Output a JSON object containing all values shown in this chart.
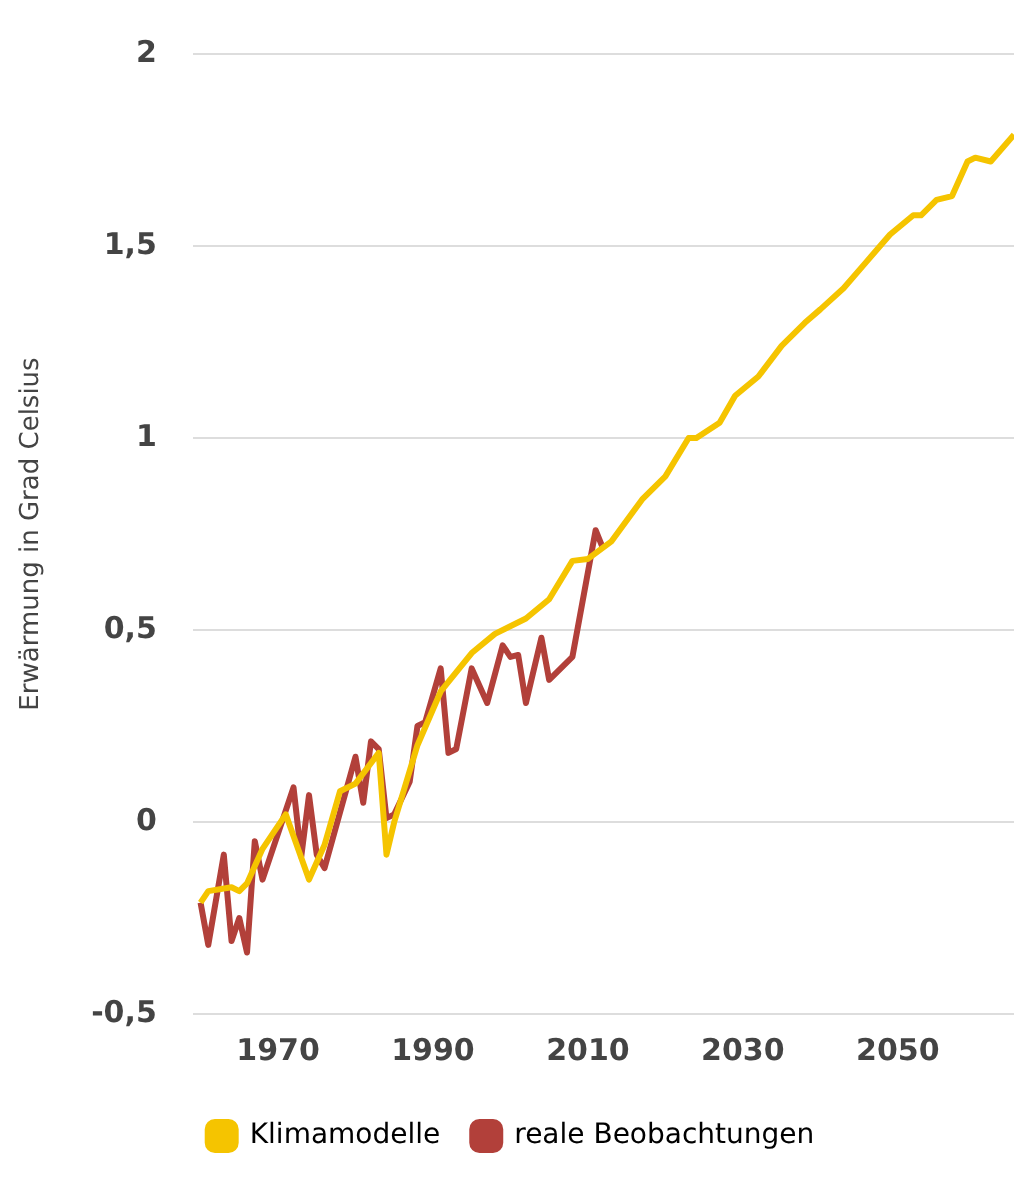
{
  "chart_data": {
    "type": "line",
    "ylabel": "Erwärmung in Grad Celsius",
    "xlim": [
      1959,
      2065
    ],
    "xticks": [
      1970,
      1990,
      2010,
      2030,
      2050
    ],
    "ylim": [
      -0.5,
      2
    ],
    "yticks": [
      {
        "value": -0.5,
        "label": "-0,5"
      },
      0,
      {
        "value": 0.5,
        "label": "0,5"
      },
      1,
      {
        "value": 1.5,
        "label": "1,5"
      },
      2
    ],
    "grid": "y",
    "legend": "bottom",
    "marker": "none",
    "line_style": "solid",
    "series": [
      {
        "name": "Klimamodelle",
        "color": "#f5c400",
        "x": [
          1960,
          1961,
          1964,
          1965,
          1966,
          1968,
          1971,
          1974,
          1976,
          1978,
          1980,
          1983,
          1984,
          1985,
          1988,
          1991,
          1995,
          1998,
          2002,
          2005,
          2008,
          2010,
          2013,
          2017,
          2020,
          2023,
          2024,
          2027,
          2029,
          2032,
          2035,
          2038,
          2040,
          2043,
          2046,
          2049,
          2052,
          2053,
          2055,
          2057,
          2059,
          2060,
          2062,
          2065
        ],
        "values": [
          -0.21,
          -0.18,
          -0.17,
          -0.18,
          -0.16,
          -0.07,
          0.02,
          -0.15,
          -0.06,
          0.08,
          0.1,
          0.18,
          -0.085,
          0.0,
          0.2,
          0.34,
          0.44,
          0.49,
          0.53,
          0.58,
          0.68,
          0.685,
          0.73,
          0.84,
          0.9,
          1.0,
          1.0,
          1.04,
          1.11,
          1.16,
          1.24,
          1.3,
          1.335,
          1.39,
          1.46,
          1.53,
          1.58,
          1.58,
          1.62,
          1.63,
          1.72,
          1.73,
          1.72,
          1.79
        ]
      },
      {
        "name": "reale Beobachtungen",
        "color": "#b2403a",
        "x": [
          1960,
          1961,
          1963,
          1964,
          1965,
          1966,
          1967,
          1968,
          1972,
          1973,
          1974,
          1975,
          1976,
          1980,
          1981,
          1982,
          1983,
          1984,
          1985,
          1987,
          1988,
          1989,
          1991,
          1992,
          1993,
          1995,
          1997,
          1999,
          2000,
          2001,
          2002,
          2004,
          2005,
          2008,
          2011,
          2012
        ],
        "values": [
          -0.21,
          -0.32,
          -0.085,
          -0.31,
          -0.25,
          -0.34,
          -0.05,
          -0.15,
          0.09,
          -0.09,
          0.07,
          -0.085,
          -0.12,
          0.17,
          0.05,
          0.21,
          0.19,
          0.01,
          0.02,
          0.105,
          0.25,
          0.26,
          0.4,
          0.18,
          0.19,
          0.4,
          0.31,
          0.46,
          0.43,
          0.435,
          0.31,
          0.48,
          0.37,
          0.43,
          0.76,
          0.71
        ]
      }
    ]
  }
}
